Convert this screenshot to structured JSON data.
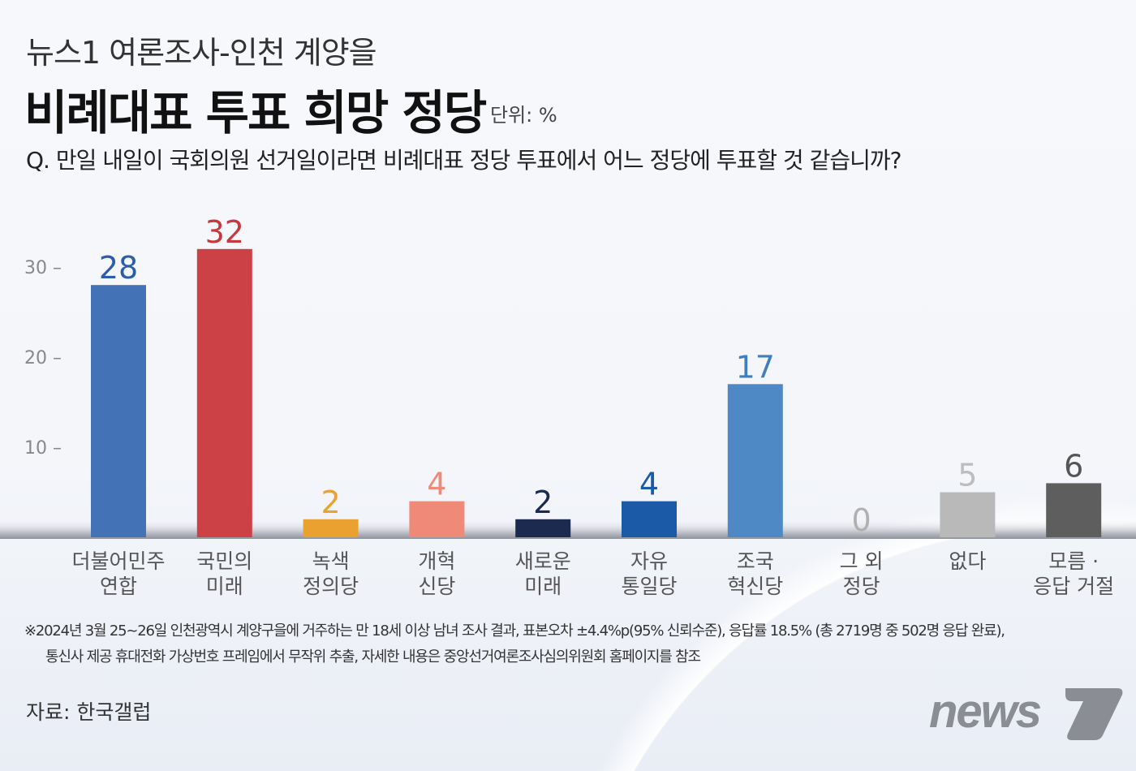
{
  "header": {
    "title_line1": "뉴스1 여론조사-인천 계양을",
    "title_line2": "비례대표 투표 희망 정당",
    "unit": "단위: %",
    "question": "Q. 만일 내일이 국회의원 선거일이라면 비례대표 정당 투표에서 어느 정당에 투표할 것 같습니까?"
  },
  "chart_data": {
    "type": "bar",
    "categories": [
      "더불어민주\n연합",
      "국민의\n미래",
      "녹색\n정의당",
      "개혁\n신당",
      "새로운\n미래",
      "자유\n통일당",
      "조국\n혁신당",
      "그 외\n정당",
      "없다",
      "모름 ·\n응답 거절"
    ],
    "values": [
      28,
      32,
      2,
      4,
      2,
      4,
      17,
      0,
      5,
      6
    ],
    "bar_colors": [
      "#4472b6",
      "#cc4146",
      "#eba12f",
      "#f08a78",
      "#1c2a50",
      "#1b5aa6",
      "#4f89c5",
      "#c8c8c8",
      "#b9b9b9",
      "#5e5e5e"
    ],
    "label_colors": [
      "#2a5ea8",
      "#c8373d",
      "#eba12f",
      "#f08a78",
      "#1c2a50",
      "#1b5aa6",
      "#3f7fc0",
      "#b0b0b0",
      "#bdbdbd",
      "#555555"
    ],
    "yticks": [
      10,
      20,
      30
    ],
    "ylim": [
      0,
      32
    ],
    "grid": false
  },
  "footer": {
    "note_line1": "※2024년 3월 25~26일 인천광역시 계양구을에 거주하는 만 18세 이상 남녀 조사 결과, 표본오차 ±4.4%p(95% 신뢰수준), 응답률 18.5% (총 2719명 중 502명 응답 완료),",
    "note_line2": "통신사 제공 휴대전화 가상번호 프레임에서 무작위 추출, 자세한 내용은 중앙선거여론조사심의위원회 홈페이지를 참조",
    "source": "자료: 한국갤럽"
  },
  "logo": {
    "text": "news1"
  }
}
